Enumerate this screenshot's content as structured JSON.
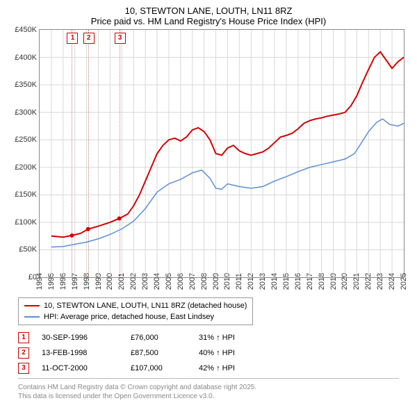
{
  "title_line1": "10, STEWTON LANE, LOUTH, LN11 8RZ",
  "title_line2": "Price paid vs. HM Land Registry's House Price Index (HPI)",
  "chart": {
    "type": "line",
    "background_color": "#ffffff",
    "border_color": "#888888",
    "grid_color": "#d8d8d8",
    "x": {
      "min": 1994,
      "max": 2025,
      "tick_step": 1,
      "ticks": [
        1994,
        1995,
        1996,
        1997,
        1998,
        1999,
        2000,
        2001,
        2002,
        2003,
        2004,
        2005,
        2006,
        2007,
        2008,
        2009,
        2010,
        2011,
        2012,
        2013,
        2014,
        2015,
        2016,
        2017,
        2018,
        2019,
        2020,
        2021,
        2022,
        2023,
        2024,
        2025
      ]
    },
    "y": {
      "min": 0,
      "max": 450000,
      "tick_step": 50000,
      "tick_labels": [
        "£0",
        "£50K",
        "£100K",
        "£150K",
        "£200K",
        "£250K",
        "£300K",
        "£350K",
        "£400K",
        "£450K"
      ],
      "ticks": [
        0,
        50000,
        100000,
        150000,
        200000,
        250000,
        300000,
        350000,
        400000,
        450000
      ]
    },
    "series": [
      {
        "name": "10, STEWTON LANE, LOUTH, LN11 8RZ (detached house)",
        "color": "#d40000",
        "line_width": 2,
        "xy": [
          [
            1995.0,
            75000
          ],
          [
            1996.0,
            73000
          ],
          [
            1996.75,
            76000
          ],
          [
            1997.5,
            80000
          ],
          [
            1998.12,
            87500
          ],
          [
            1999.0,
            93000
          ],
          [
            2000.0,
            100000
          ],
          [
            2000.78,
            107000
          ],
          [
            2001.5,
            115000
          ],
          [
            2002.0,
            130000
          ],
          [
            2002.5,
            150000
          ],
          [
            2003.0,
            175000
          ],
          [
            2003.5,
            200000
          ],
          [
            2004.0,
            225000
          ],
          [
            2004.5,
            240000
          ],
          [
            2005.0,
            250000
          ],
          [
            2005.5,
            253000
          ],
          [
            2006.0,
            248000
          ],
          [
            2006.5,
            255000
          ],
          [
            2007.0,
            268000
          ],
          [
            2007.5,
            272000
          ],
          [
            2008.0,
            265000
          ],
          [
            2008.5,
            250000
          ],
          [
            2009.0,
            225000
          ],
          [
            2009.5,
            222000
          ],
          [
            2010.0,
            235000
          ],
          [
            2010.5,
            240000
          ],
          [
            2011.0,
            230000
          ],
          [
            2011.5,
            225000
          ],
          [
            2012.0,
            222000
          ],
          [
            2012.5,
            225000
          ],
          [
            2013.0,
            228000
          ],
          [
            2013.5,
            235000
          ],
          [
            2014.0,
            245000
          ],
          [
            2014.5,
            255000
          ],
          [
            2015.0,
            258000
          ],
          [
            2015.5,
            262000
          ],
          [
            2016.0,
            270000
          ],
          [
            2016.5,
            280000
          ],
          [
            2017.0,
            285000
          ],
          [
            2017.5,
            288000
          ],
          [
            2018.0,
            290000
          ],
          [
            2018.5,
            293000
          ],
          [
            2019.0,
            295000
          ],
          [
            2019.5,
            297000
          ],
          [
            2020.0,
            300000
          ],
          [
            2020.5,
            312000
          ],
          [
            2021.0,
            330000
          ],
          [
            2021.5,
            355000
          ],
          [
            2022.0,
            378000
          ],
          [
            2022.5,
            400000
          ],
          [
            2023.0,
            410000
          ],
          [
            2023.5,
            395000
          ],
          [
            2024.0,
            380000
          ],
          [
            2024.5,
            392000
          ],
          [
            2025.0,
            400000
          ]
        ]
      },
      {
        "name": "HPI: Average price, detached house, East Lindsey",
        "color": "#5b8fd6",
        "line_width": 1.5,
        "xy": [
          [
            1995.0,
            55000
          ],
          [
            1996.0,
            56000
          ],
          [
            1997.0,
            60000
          ],
          [
            1998.0,
            64000
          ],
          [
            1999.0,
            70000
          ],
          [
            2000.0,
            78000
          ],
          [
            2001.0,
            88000
          ],
          [
            2002.0,
            102000
          ],
          [
            2003.0,
            125000
          ],
          [
            2004.0,
            155000
          ],
          [
            2005.0,
            170000
          ],
          [
            2006.0,
            178000
          ],
          [
            2007.0,
            190000
          ],
          [
            2007.8,
            195000
          ],
          [
            2008.5,
            180000
          ],
          [
            2009.0,
            162000
          ],
          [
            2009.5,
            160000
          ],
          [
            2010.0,
            170000
          ],
          [
            2011.0,
            165000
          ],
          [
            2012.0,
            162000
          ],
          [
            2013.0,
            165000
          ],
          [
            2014.0,
            175000
          ],
          [
            2015.0,
            183000
          ],
          [
            2016.0,
            192000
          ],
          [
            2017.0,
            200000
          ],
          [
            2018.0,
            205000
          ],
          [
            2019.0,
            210000
          ],
          [
            2020.0,
            215000
          ],
          [
            2020.8,
            225000
          ],
          [
            2021.5,
            248000
          ],
          [
            2022.0,
            265000
          ],
          [
            2022.7,
            282000
          ],
          [
            2023.2,
            288000
          ],
          [
            2023.8,
            278000
          ],
          [
            2024.5,
            275000
          ],
          [
            2025.0,
            280000
          ]
        ]
      }
    ],
    "price_markers": [
      {
        "year": 1996.75,
        "value": 76000
      },
      {
        "year": 1998.12,
        "value": 87500
      },
      {
        "year": 2000.78,
        "value": 107000
      }
    ],
    "event_lines": [
      1996.75,
      1998.12,
      2000.78
    ]
  },
  "legend": {
    "rows": [
      {
        "color": "#d40000",
        "label": "10, STEWTON LANE, LOUTH, LN11 8RZ (detached house)"
      },
      {
        "color": "#5b8fd6",
        "label": "HPI: Average price, detached house, East Lindsey"
      }
    ]
  },
  "events": [
    {
      "n": "1",
      "date": "30-SEP-1996",
      "price": "£76,000",
      "delta": "31% ↑ HPI"
    },
    {
      "n": "2",
      "date": "13-FEB-1998",
      "price": "£87,500",
      "delta": "40% ↑ HPI"
    },
    {
      "n": "3",
      "date": "11-OCT-2000",
      "price": "£107,000",
      "delta": "42% ↑ HPI"
    }
  ],
  "footer_line1": "Contains HM Land Registry data © Crown copyright and database right 2025.",
  "footer_line2": "This data is licensed under the Open Government Licence v3.0."
}
